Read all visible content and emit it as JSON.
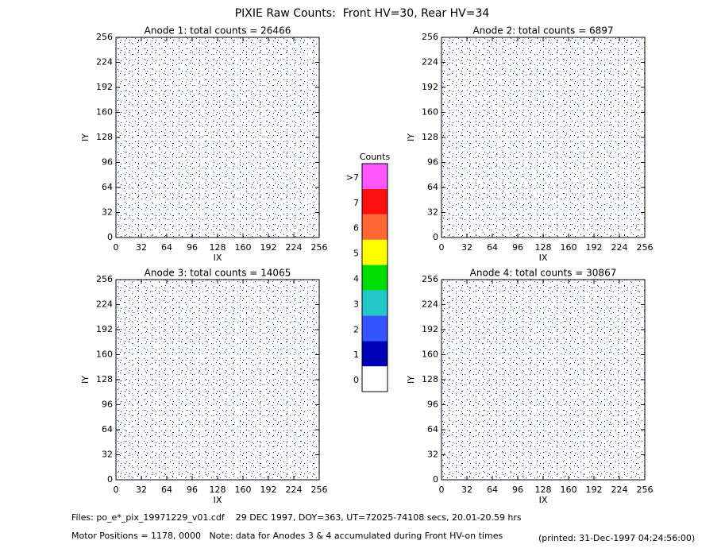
{
  "title": "PIXIE Raw Counts:  Front HV=30, Rear HV=34",
  "chart_data": [
    {
      "type": "heatmap",
      "title": "Anode 1: total counts = 26466",
      "xlabel": "IX",
      "ylabel": "IY",
      "xlim": [
        0,
        256
      ],
      "ylim": [
        0,
        256
      ],
      "xticks": [
        0,
        32,
        64,
        96,
        128,
        160,
        192,
        224,
        256
      ],
      "yticks": [
        0,
        32,
        64,
        96,
        128,
        160,
        192,
        224,
        256
      ]
    },
    {
      "type": "heatmap",
      "title": "Anode 2: total counts = 6897",
      "xlabel": "IX",
      "ylabel": "IY",
      "xlim": [
        0,
        256
      ],
      "ylim": [
        0,
        256
      ],
      "xticks": [
        0,
        32,
        64,
        96,
        128,
        160,
        192,
        224,
        256
      ],
      "yticks": [
        0,
        32,
        64,
        96,
        128,
        160,
        192,
        224,
        256
      ]
    },
    {
      "type": "heatmap",
      "title": "Anode 3: total counts = 14065",
      "xlabel": "IX",
      "ylabel": "IY",
      "xlim": [
        0,
        256
      ],
      "ylim": [
        0,
        256
      ],
      "xticks": [
        0,
        32,
        64,
        96,
        128,
        160,
        192,
        224,
        256
      ],
      "yticks": [
        0,
        32,
        64,
        96,
        128,
        160,
        192,
        224,
        256
      ]
    },
    {
      "type": "heatmap",
      "title": "Anode 4: total counts = 30867",
      "xlabel": "IX",
      "ylabel": "IY",
      "xlim": [
        0,
        256
      ],
      "ylim": [
        0,
        256
      ],
      "xticks": [
        0,
        32,
        64,
        96,
        128,
        160,
        192,
        224,
        256
      ],
      "yticks": [
        0,
        32,
        64,
        96,
        128,
        160,
        192,
        224,
        256
      ]
    }
  ],
  "colorbar": {
    "title": "Counts",
    "entries": [
      {
        "label": "0",
        "color": "#ffffff"
      },
      {
        "label": "1",
        "color": "#0000b4"
      },
      {
        "label": "2",
        "color": "#3355ff"
      },
      {
        "label": "3",
        "color": "#22c8c8"
      },
      {
        "label": "4",
        "color": "#00dd00"
      },
      {
        "label": "5",
        "color": "#ffff00"
      },
      {
        "label": "6",
        "color": "#ff6633"
      },
      {
        "label": "7",
        "color": "#ff1010"
      },
      {
        "label": ">7",
        "color": "#ff55ff"
      }
    ]
  },
  "footer": {
    "files": "Files: po_e*_pix_19971229_v01.cdf    29 DEC 1997, DOY=363, UT=72025-74108 secs, 20.01-20.59 hrs",
    "motor": "Motor Positions = 1178, 0000   Note: data for Anodes 3 & 4 accumulated during Front HV-on times",
    "printed": "(printed: 31-Dec-1997 04:24:56:00)"
  }
}
